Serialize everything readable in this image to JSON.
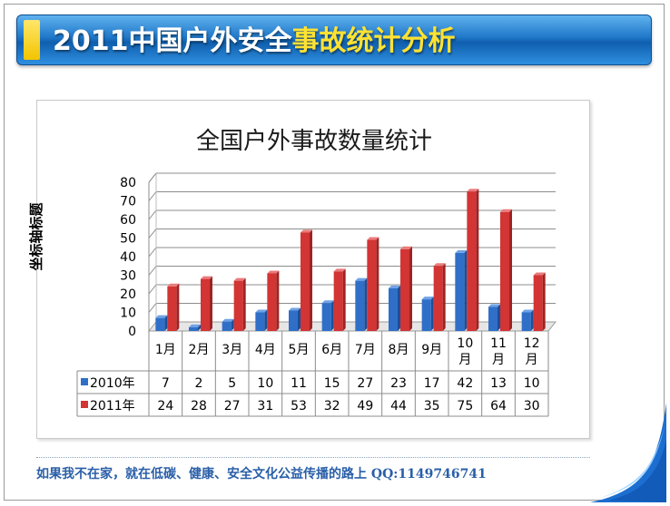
{
  "header": {
    "title_prefix": "2011中国户外安全",
    "title_highlight": "事故统计分析"
  },
  "footer": {
    "text": "如果我不在家，就在低碳、健康、安全文化公益传播的路上  QQ:1149746741"
  },
  "colors": {
    "title_bar": "#1f77c8",
    "title_highlight": "#ffe233",
    "series_2010": "#2f6fc8",
    "series_2011": "#d33434"
  },
  "chart_data": {
    "type": "bar",
    "title": "全国户外事故数量统计",
    "ylabel": "坐标轴标题",
    "xlabel": "",
    "ylim": [
      0,
      80
    ],
    "yticks": [
      "80",
      "70",
      "60",
      "50",
      "40",
      "30",
      "20",
      "10",
      "0"
    ],
    "categories": [
      "1月",
      "2月",
      "3月",
      "4月",
      "5月",
      "6月",
      "7月",
      "8月",
      "9月",
      "10\n月",
      "11\n月",
      "12\n月"
    ],
    "series": [
      {
        "name": "2010年",
        "values": [
          7,
          2,
          5,
          10,
          11,
          15,
          27,
          23,
          17,
          42,
          13,
          10
        ]
      },
      {
        "name": "2011年",
        "values": [
          24,
          28,
          27,
          31,
          53,
          32,
          49,
          44,
          35,
          75,
          64,
          30
        ]
      }
    ],
    "grid": true,
    "legend": "data-table"
  }
}
